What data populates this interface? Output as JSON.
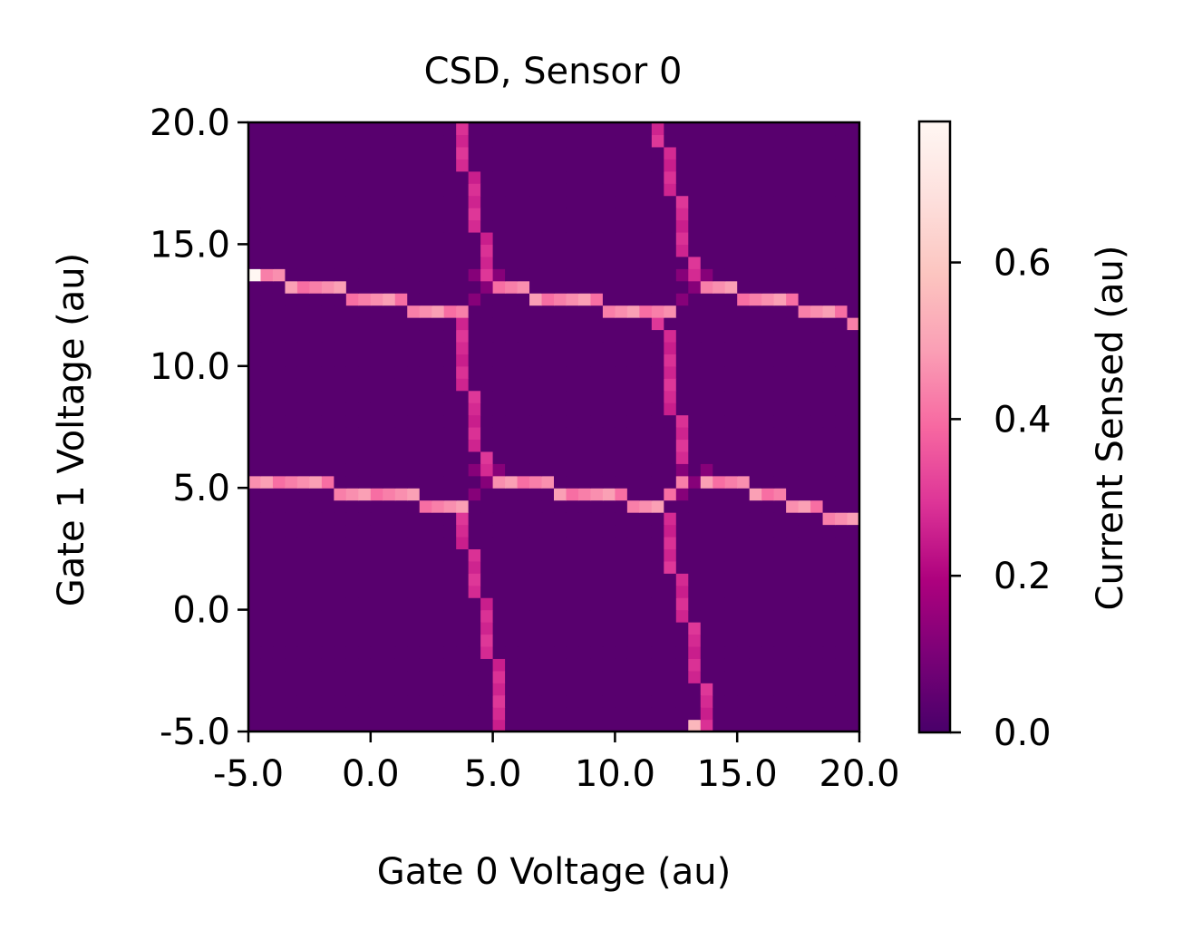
{
  "chart_data": {
    "type": "heatmap",
    "title": "CSD, Sensor 0",
    "xlabel": "Gate 0 Voltage (au)",
    "ylabel": "Gate 1 Voltage (au)",
    "colorbar_label": "Current Sensed (au)",
    "xlim": [
      -5.0,
      20.0
    ],
    "ylim": [
      -5.0,
      20.0
    ],
    "x_ticks": [
      "-5.0",
      "0.0",
      "5.0",
      "10.0",
      "15.0",
      "20.0"
    ],
    "y_ticks": [
      "-5.0",
      "0.0",
      "5.0",
      "10.0",
      "15.0",
      "20.0"
    ],
    "colorbar_ticks": [
      "0.0",
      "0.2",
      "0.4",
      "0.6"
    ],
    "colorbar_range": [
      0.0,
      0.78
    ],
    "colormap": "RdPu_r",
    "grid_size": 50,
    "background_value": 0.03,
    "vertical_lines": [
      {
        "points": [
          [
            3.5,
            20.0
          ],
          [
            4.1,
            17.5
          ],
          [
            4.6,
            15.0
          ],
          [
            4.9,
            13.2
          ],
          [
            3.6,
            12.0
          ],
          [
            4.0,
            9.0
          ],
          [
            4.5,
            6.5
          ],
          [
            4.8,
            5.3
          ],
          [
            3.6,
            4.3
          ],
          [
            4.2,
            1.5
          ],
          [
            4.8,
            -1.0
          ],
          [
            5.3,
            -3.5
          ],
          [
            5.5,
            -5.0
          ]
        ],
        "value": 0.25
      },
      {
        "points": [
          [
            11.8,
            20.0
          ],
          [
            12.4,
            17.5
          ],
          [
            12.9,
            15.0
          ],
          [
            13.3,
            13.2
          ],
          [
            11.9,
            12.0
          ],
          [
            12.3,
            9.0
          ],
          [
            12.8,
            6.5
          ],
          [
            13.1,
            5.3
          ],
          [
            11.9,
            4.3
          ],
          [
            12.5,
            1.5
          ],
          [
            13.1,
            -1.0
          ],
          [
            13.6,
            -3.5
          ],
          [
            13.9,
            -5.0
          ]
        ],
        "value": 0.25
      }
    ],
    "horizontal_lines": [
      {
        "points": [
          [
            -5.0,
            13.8
          ],
          [
            0.0,
            12.8
          ],
          [
            3.5,
            12.0
          ],
          [
            5.0,
            13.2
          ],
          [
            8.0,
            12.8
          ],
          [
            11.8,
            12.0
          ],
          [
            13.3,
            13.2
          ],
          [
            16.0,
            12.9
          ],
          [
            20.0,
            11.8
          ]
        ],
        "value": 0.4
      },
      {
        "points": [
          [
            -5.0,
            5.5
          ],
          [
            0.0,
            4.8
          ],
          [
            3.5,
            4.3
          ],
          [
            5.0,
            5.4
          ],
          [
            8.0,
            4.9
          ],
          [
            11.8,
            4.3
          ],
          [
            13.2,
            5.4
          ],
          [
            16.0,
            4.9
          ],
          [
            20.0,
            3.5
          ]
        ],
        "value": 0.4
      }
    ],
    "crossing_value": 0.12,
    "hot_pixels": [
      {
        "x": -4.75,
        "y": 13.75,
        "value": 0.78
      },
      {
        "x": 13.25,
        "y": -4.75,
        "value": 0.55
      }
    ]
  }
}
